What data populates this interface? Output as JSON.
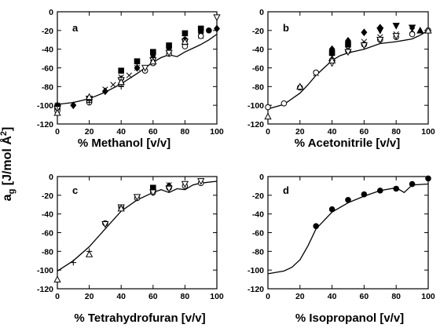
{
  "ylabel_shared": "a",
  "ylabel_sub": "g",
  "ylabel_rest": " [J/mol Å",
  "ylabel_sup": "2",
  "ylabel_close": "]",
  "chart_data": [
    {
      "type": "scatter",
      "panel_label": "a",
      "xlabel": "% Methanol [v/v]",
      "xlim": [
        0,
        100
      ],
      "ylim": [
        -120,
        0
      ],
      "xticks": [
        0,
        20,
        40,
        60,
        80,
        100
      ],
      "yticks": [
        -120,
        -100,
        -80,
        -60,
        -40,
        -20,
        0
      ],
      "curve": {
        "x": [
          0,
          10,
          20,
          30,
          40,
          50,
          55,
          60,
          65,
          70,
          75,
          80,
          85,
          90,
          95,
          100
        ],
        "y": [
          -99,
          -97,
          -93,
          -86,
          -77,
          -66,
          -60,
          -54,
          -49,
          -46,
          -48,
          -43,
          -39,
          -35,
          -30,
          -24
        ]
      },
      "series": [
        {
          "marker": "square-filled",
          "x": [
            0,
            20,
            40,
            50,
            60,
            70,
            80,
            90
          ],
          "y": [
            -102,
            -93,
            -63,
            -53,
            -43,
            -36,
            -23,
            -18
          ]
        },
        {
          "marker": "diamond-filled",
          "x": [
            0,
            10,
            20,
            30,
            40,
            50,
            60,
            70,
            80,
            90,
            100
          ],
          "y": [
            -100,
            -100,
            -95,
            -85,
            -72,
            -60,
            -50,
            -42,
            -30,
            -22,
            -18
          ]
        },
        {
          "marker": "circle-filled",
          "x": [
            60,
            70,
            80,
            95
          ],
          "y": [
            -45,
            -38,
            -30,
            -20
          ]
        },
        {
          "marker": "cross",
          "x": [
            0,
            30,
            35,
            40,
            45,
            50,
            60,
            70,
            80,
            90
          ],
          "y": [
            -100,
            -83,
            -78,
            -70,
            -68,
            -60,
            -50,
            -42,
            -34,
            -26
          ]
        },
        {
          "marker": "circle-open",
          "x": [
            0,
            20,
            40,
            55,
            60,
            70,
            80,
            90
          ],
          "y": [
            -106,
            -97,
            -77,
            -63,
            -55,
            -45,
            -37,
            -26
          ]
        },
        {
          "marker": "triangle-down-open",
          "x": [
            0,
            20,
            40,
            55,
            60,
            70,
            80,
            100
          ],
          "y": [
            -104,
            -93,
            -73,
            -60,
            -52,
            -44,
            -32,
            -6
          ]
        },
        {
          "marker": "plus",
          "x": [
            0,
            10,
            20,
            40
          ],
          "y": [
            -101,
            -100,
            -97,
            -80
          ]
        },
        {
          "marker": "triangle-open",
          "x": [
            0,
            20,
            40,
            60,
            80
          ],
          "y": [
            -108,
            -91,
            -75,
            -53,
            -32
          ]
        }
      ]
    },
    {
      "type": "scatter",
      "panel_label": "b",
      "xlabel": "% Acetonitrile [v/v]",
      "xlim": [
        0,
        100
      ],
      "ylim": [
        -120,
        0
      ],
      "xticks": [
        0,
        20,
        40,
        60,
        80,
        100
      ],
      "yticks": [
        -120,
        -100,
        -80,
        -60,
        -40,
        -20,
        0
      ],
      "curve": {
        "x": [
          0,
          10,
          20,
          25,
          30,
          35,
          40,
          45,
          50,
          60,
          70,
          80,
          90,
          95,
          100
        ],
        "y": [
          -104,
          -99,
          -87,
          -78,
          -68,
          -60,
          -52,
          -47,
          -44,
          -40,
          -34,
          -32,
          -29,
          -25,
          -20
        ]
      },
      "series": [
        {
          "marker": "square-filled",
          "x": [
            40,
            50
          ],
          "y": [
            -44,
            -35
          ]
        },
        {
          "marker": "diamond-filled",
          "x": [
            40,
            50,
            60,
            70
          ],
          "y": [
            -40,
            -31,
            -22,
            -17
          ]
        },
        {
          "marker": "triangle-down-filled",
          "x": [
            70,
            80,
            90
          ],
          "y": [
            -20,
            -15,
            -17
          ]
        },
        {
          "marker": "triangle-filled",
          "x": [
            95
          ],
          "y": [
            -20
          ]
        },
        {
          "marker": "cross",
          "x": [
            30,
            40,
            50,
            60,
            70,
            80,
            90
          ],
          "y": [
            -66,
            -48,
            -40,
            -32,
            -27,
            -24,
            -20
          ]
        },
        {
          "marker": "circle-open",
          "x": [
            0,
            10,
            20,
            30,
            40,
            50,
            60,
            70,
            80,
            90,
            100
          ],
          "y": [
            -102,
            -98,
            -81,
            -65,
            -52,
            -42,
            -35,
            -30,
            -27,
            -24,
            -20
          ]
        },
        {
          "marker": "triangle-down-open",
          "x": [
            40,
            50,
            60,
            70,
            80
          ],
          "y": [
            -55,
            -43,
            -36,
            -30,
            -26
          ]
        },
        {
          "marker": "triangle-open",
          "x": [
            0,
            20,
            40,
            100
          ],
          "y": [
            -112,
            -80,
            -52,
            -20
          ]
        }
      ]
    },
    {
      "type": "scatter",
      "panel_label": "c",
      "xlabel": "% Tetrahydrofuran [v/v]",
      "xlim": [
        0,
        100
      ],
      "ylim": [
        -120,
        0
      ],
      "xticks": [
        0,
        20,
        40,
        60,
        80,
        100
      ],
      "yticks": [
        -120,
        -100,
        -80,
        -60,
        -40,
        -20,
        0
      ],
      "curve": {
        "x": [
          0,
          10,
          20,
          30,
          40,
          50,
          60,
          65,
          70,
          75,
          80,
          85,
          90,
          100
        ],
        "y": [
          -101,
          -90,
          -75,
          -56,
          -37,
          -25,
          -17,
          -14,
          -17,
          -13,
          -14,
          -9,
          -7,
          -5
        ]
      },
      "series": [
        {
          "marker": "square-filled",
          "x": [
            60
          ],
          "y": [
            -12
          ]
        },
        {
          "marker": "diamond-filled",
          "x": [
            60,
            70
          ],
          "y": [
            -14,
            -10
          ]
        },
        {
          "marker": "cross",
          "x": [
            70
          ],
          "y": [
            -9
          ]
        },
        {
          "marker": "circle-open",
          "x": [
            30,
            40,
            50,
            60,
            70,
            80,
            90
          ],
          "y": [
            -50,
            -33,
            -23,
            -17,
            -12,
            -10,
            -7
          ]
        },
        {
          "marker": "triangle-down-open",
          "x": [
            30,
            40,
            50,
            60,
            70,
            80,
            90
          ],
          "y": [
            -51,
            -33,
            -22,
            -17,
            -13,
            -8,
            -5
          ]
        },
        {
          "marker": "plus",
          "x": [
            10,
            20
          ],
          "y": [
            -92,
            -80
          ]
        },
        {
          "marker": "triangle-open",
          "x": [
            0,
            20,
            40
          ],
          "y": [
            -110,
            -83,
            -34
          ]
        }
      ]
    },
    {
      "type": "scatter",
      "panel_label": "d",
      "xlabel": "% Isopropanol [v/v]",
      "xlim": [
        0,
        100
      ],
      "ylim": [
        -120,
        0
      ],
      "xticks": [
        0,
        20,
        40,
        60,
        80,
        100
      ],
      "yticks": [
        -120,
        -100,
        -80,
        -60,
        -40,
        -20,
        0
      ],
      "curve": {
        "x": [
          0,
          10,
          15,
          20,
          25,
          30,
          40,
          50,
          60,
          70,
          80,
          85,
          90,
          100
        ],
        "y": [
          -104,
          -101,
          -97,
          -89,
          -74,
          -56,
          -38,
          -28,
          -21,
          -15,
          -12,
          -17,
          -9,
          -8
        ]
      },
      "series": [
        {
          "marker": "circle-filled",
          "x": [
            30,
            40,
            50,
            60,
            70,
            80,
            90,
            100
          ],
          "y": [
            -53,
            -35,
            -25,
            -19,
            -15,
            -13,
            -8,
            -2
          ]
        }
      ]
    }
  ]
}
